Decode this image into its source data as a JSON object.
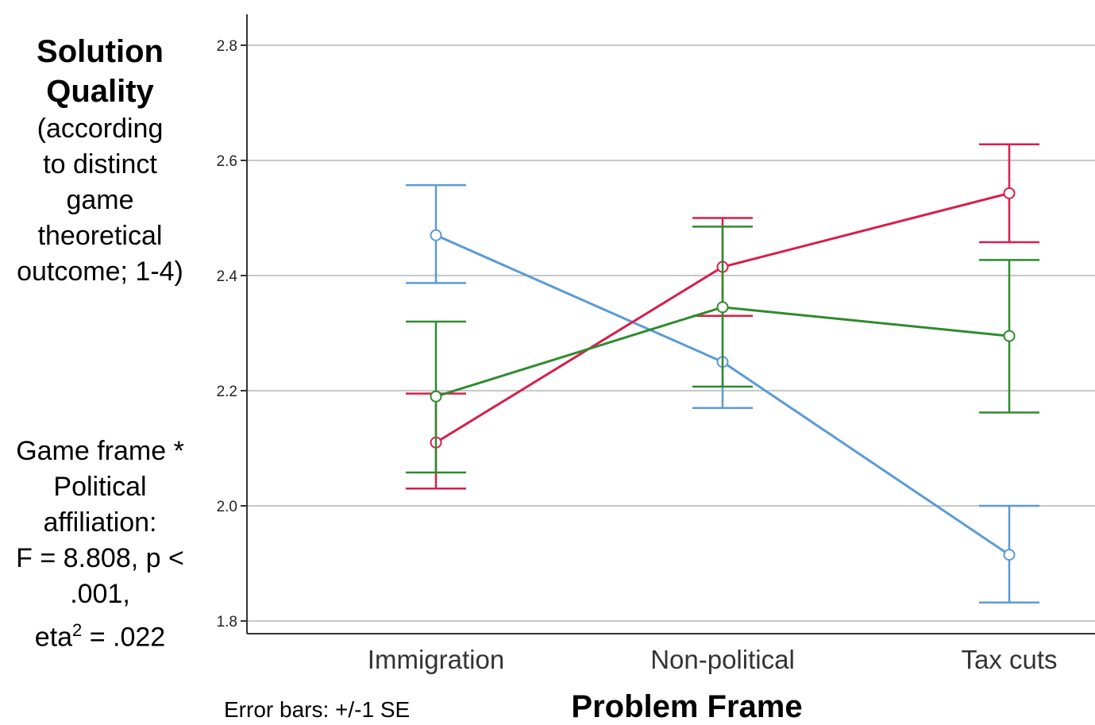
{
  "ylabel": {
    "title_line1": "Solution",
    "title_line2": "Quality",
    "sub_lines": [
      "(according",
      "to distinct",
      "game",
      "theoretical",
      "outcome; 1-4)"
    ]
  },
  "stats": {
    "line1": "Game frame *",
    "line2": "Political",
    "line3": "affiliation:",
    "line4": "F = 8.808, p <",
    "line5": ".001,",
    "line6_pre": "eta",
    "line6_sup": "2",
    "line6_post": " = .022"
  },
  "error_note": "Error bars: +/-1 SE",
  "chart_data": {
    "type": "line",
    "categories": [
      "Immigration",
      "Non-political",
      "Tax cuts"
    ],
    "xlabel": "Problem Frame",
    "ylabel": "Solution Quality (according to distinct game theoretical outcome; 1-4)",
    "ylim": [
      1.8,
      2.8
    ],
    "yticks": [
      "1.8",
      "2.0",
      "2.2",
      "2.4",
      "2.6",
      "2.8"
    ],
    "grid": "horizontal",
    "error_bars": "+/-1 SE",
    "series": [
      {
        "color": "#5b9bd5",
        "values": [
          2.47,
          2.25,
          1.915
        ],
        "lower": [
          2.387,
          2.17,
          1.832
        ],
        "upper": [
          2.557,
          2.33,
          2.0
        ]
      },
      {
        "color": "#d81e4a",
        "values": [
          2.11,
          2.415,
          2.543
        ],
        "lower": [
          2.03,
          2.33,
          2.458
        ],
        "upper": [
          2.195,
          2.5,
          2.628
        ]
      },
      {
        "color": "#2e8b2e",
        "values": [
          2.19,
          2.345,
          2.295
        ],
        "lower": [
          2.058,
          2.207,
          2.162
        ],
        "upper": [
          2.32,
          2.485,
          2.427
        ]
      }
    ]
  }
}
